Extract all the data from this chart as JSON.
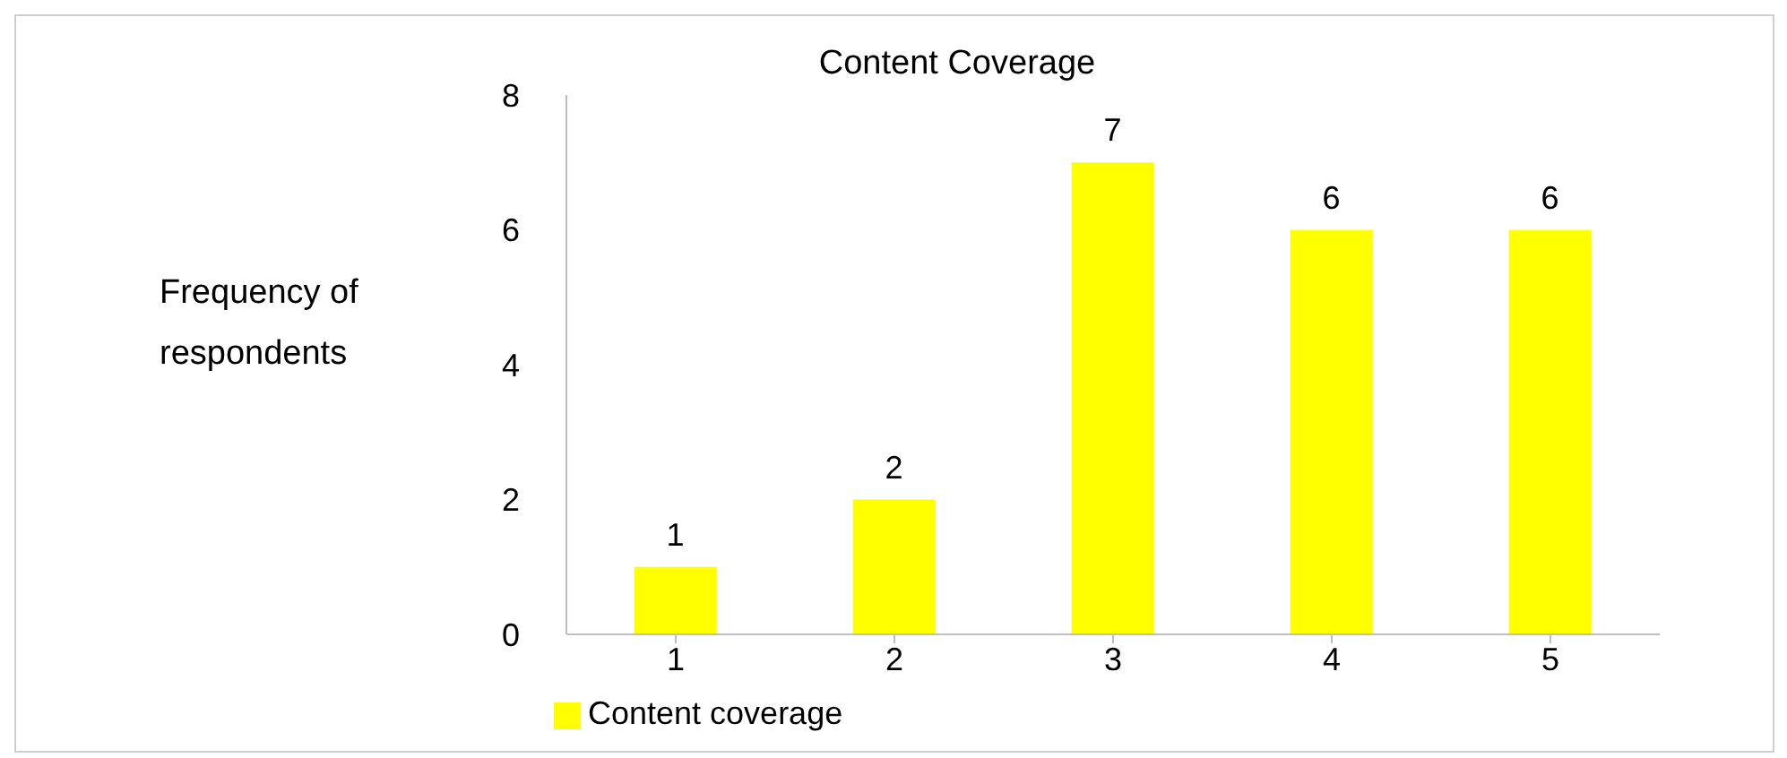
{
  "chart_data": {
    "type": "bar",
    "title": "Content Coverage",
    "ylabel": "Frequency of respondents",
    "categories": [
      "1",
      "2",
      "3",
      "4",
      "5"
    ],
    "series": [
      {
        "name": "Content coverage",
        "color": "#ffff00",
        "values": [
          1,
          2,
          7,
          6,
          6
        ]
      }
    ],
    "ylim": [
      0,
      8
    ],
    "yticks": [
      0,
      2,
      4,
      6,
      8
    ],
    "grid": false,
    "legend": "bottom left",
    "data_labels": true
  }
}
